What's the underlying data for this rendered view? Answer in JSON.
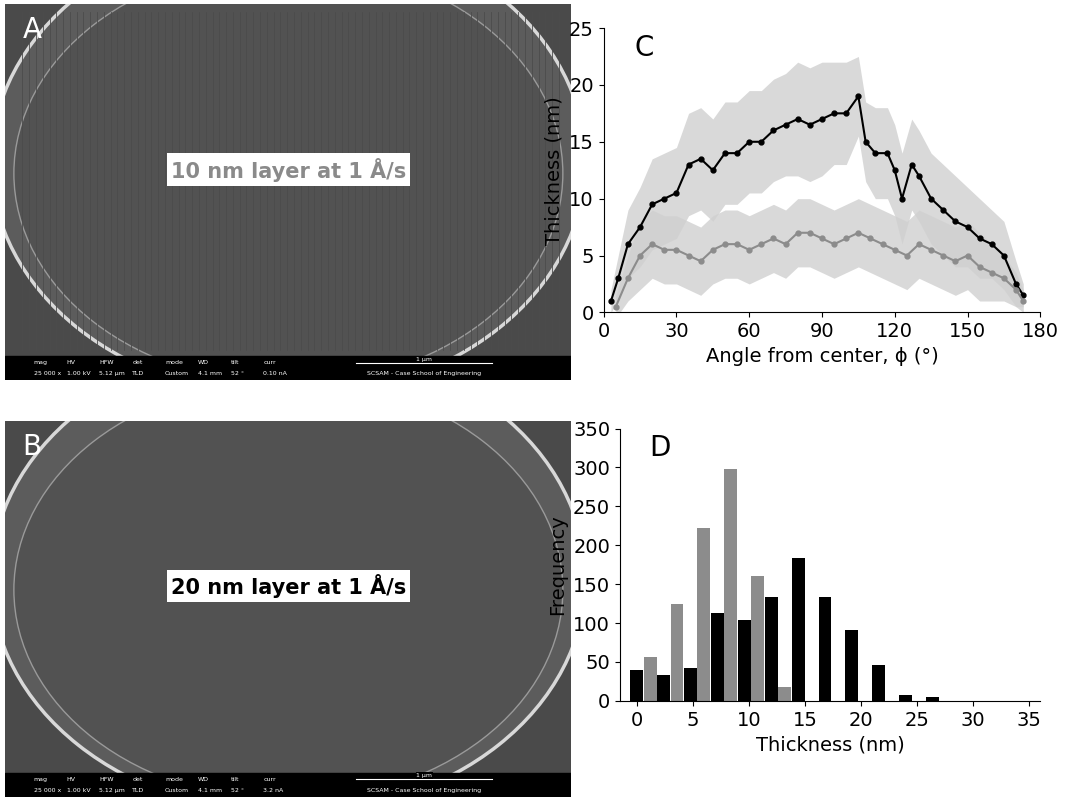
{
  "panels": [
    {
      "label": "A",
      "type": "image",
      "caption": "10 nm layer at 1 Å/s",
      "caption_color": "#8a8a8a",
      "stripes": true,
      "info_bar": {
        "fields": [
          "mag",
          "HV",
          "HFW",
          "det",
          "mode",
          "WD",
          "tilt",
          "curr"
        ],
        "values": [
          "25 000 x",
          "1.00 kV",
          "5.12 µm",
          "TLD",
          "Custom",
          "4.1 mm",
          "52 °",
          "0.10 nA"
        ],
        "scale_bar": "1 µm",
        "credit": "SCSAM - Case School of Engineering"
      }
    },
    {
      "label": "B",
      "type": "image",
      "caption": "20 nm layer at 1 Å/s",
      "caption_color": "#000000",
      "stripes": false,
      "info_bar": {
        "fields": [
          "mag",
          "HV",
          "HFW",
          "det",
          "mode",
          "WD",
          "tilt",
          "curr"
        ],
        "values": [
          "25 000 x",
          "1.00 kV",
          "5.12 µm",
          "TLD",
          "Custom",
          "4.1 mm",
          "52 °",
          "3.2 nA"
        ],
        "scale_bar": "1 µm",
        "credit": "SCSAM - Case School of Engineering"
      }
    }
  ],
  "chart_data": [
    {
      "label": "C",
      "type": "line",
      "xlabel": "Angle from center, ϕ (°)",
      "ylabel": "Thickness (nm)",
      "xlim": [
        0,
        180
      ],
      "xticks": [
        0,
        30,
        60,
        90,
        120,
        150,
        180
      ],
      "ylim": [
        0,
        25
      ],
      "yticks": [
        0,
        5,
        10,
        15,
        20,
        25
      ],
      "series": [
        {
          "color": "#000000",
          "marker": "o",
          "x": [
            3,
            6,
            10,
            15,
            20,
            25,
            30,
            35,
            40,
            45,
            50,
            55,
            60,
            65,
            70,
            75,
            80,
            85,
            90,
            95,
            100,
            105,
            108,
            112,
            117,
            120,
            123,
            127,
            130,
            135,
            140,
            145,
            150,
            155,
            160,
            165,
            170,
            173
          ],
          "values": [
            1,
            3,
            6,
            7.5,
            9.5,
            10,
            10.5,
            13,
            13.5,
            12.5,
            14,
            14,
            15,
            15,
            16,
            16.5,
            17,
            16.5,
            17,
            17.5,
            17.5,
            19,
            15,
            14,
            14,
            12.5,
            10,
            13,
            12,
            10,
            9,
            8,
            7.5,
            6.5,
            6,
            5,
            2.5,
            1.5
          ],
          "error": [
            1,
            2,
            3,
            3.5,
            4,
            4,
            4,
            4.5,
            4.5,
            4.5,
            4.5,
            4.5,
            4.5,
            4.5,
            4.5,
            4.5,
            5,
            5,
            5,
            4.5,
            4.5,
            3.5,
            3.5,
            4,
            4,
            4,
            4,
            4,
            4,
            4,
            4,
            4,
            3.5,
            3.5,
            3,
            3,
            2,
            1
          ]
        },
        {
          "color": "#8c8c8c",
          "marker": "o",
          "x": [
            5,
            10,
            15,
            20,
            25,
            30,
            35,
            40,
            45,
            50,
            55,
            60,
            65,
            70,
            75,
            80,
            85,
            90,
            95,
            100,
            105,
            110,
            115,
            120,
            125,
            130,
            135,
            140,
            145,
            150,
            155,
            160,
            165,
            170,
            173
          ],
          "values": [
            0.5,
            3,
            5,
            6,
            5.5,
            5.5,
            5,
            4.5,
            5.5,
            6,
            6,
            5.5,
            6,
            6.5,
            6,
            7,
            7,
            6.5,
            6,
            6.5,
            7,
            6.5,
            6,
            5.5,
            5,
            6,
            5.5,
            5,
            4.5,
            5,
            4,
            3.5,
            3,
            2,
            1
          ],
          "error": [
            1,
            2,
            3,
            3,
            3,
            3,
            3,
            3,
            3,
            3,
            3,
            3,
            3,
            3,
            3,
            3,
            3,
            3,
            3,
            3,
            3,
            3,
            3,
            3,
            3,
            3,
            3,
            3,
            3,
            3,
            3,
            2.5,
            2,
            1.5,
            1
          ]
        }
      ]
    },
    {
      "label": "D",
      "type": "bar",
      "xlabel": "Thickness (nm)",
      "ylabel": "Frequency",
      "xlim": [
        -1.5,
        36
      ],
      "xticks": [
        0,
        5,
        10,
        15,
        20,
        25,
        30,
        35
      ],
      "ylim": [
        0,
        350
      ],
      "yticks": [
        0,
        50,
        100,
        150,
        200,
        250,
        300,
        350
      ],
      "series": [
        {
          "color": "#000000",
          "x": [
            0,
            2.4,
            4.8,
            7.2,
            9.6,
            12,
            14.4,
            16.8,
            19.2,
            21.6,
            24,
            26.4
          ],
          "values": [
            40,
            33,
            42,
            113,
            104,
            133,
            183,
            133,
            91,
            46,
            8,
            5
          ]
        },
        {
          "color": "#8c8c8c",
          "x": [
            1.2,
            3.6,
            6.0,
            8.4,
            10.8,
            13.2
          ],
          "values": [
            57,
            125,
            222,
            298,
            161,
            18
          ]
        }
      ]
    }
  ]
}
